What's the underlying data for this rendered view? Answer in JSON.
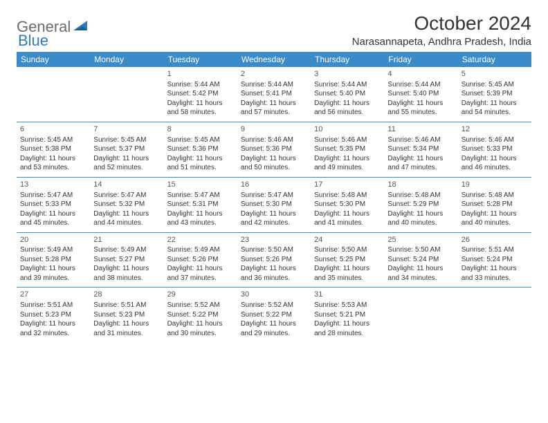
{
  "brand": {
    "part1": "General",
    "part2": "Blue"
  },
  "title": "October 2024",
  "location": "Narasannapeta, Andhra Pradesh, India",
  "colors": {
    "header_bg": "#3b8bc9",
    "header_fg": "#ffffff",
    "rule": "#3b8bc9",
    "text": "#333333",
    "logo_gray": "#6b6b6b",
    "logo_blue": "#2f7bbf"
  },
  "weekdays": [
    "Sunday",
    "Monday",
    "Tuesday",
    "Wednesday",
    "Thursday",
    "Friday",
    "Saturday"
  ],
  "lead_blanks": 2,
  "days": [
    {
      "n": "1",
      "sunrise": "5:44 AM",
      "sunset": "5:42 PM",
      "daylight": "11 hours and 58 minutes."
    },
    {
      "n": "2",
      "sunrise": "5:44 AM",
      "sunset": "5:41 PM",
      "daylight": "11 hours and 57 minutes."
    },
    {
      "n": "3",
      "sunrise": "5:44 AM",
      "sunset": "5:40 PM",
      "daylight": "11 hours and 56 minutes."
    },
    {
      "n": "4",
      "sunrise": "5:44 AM",
      "sunset": "5:40 PM",
      "daylight": "11 hours and 55 minutes."
    },
    {
      "n": "5",
      "sunrise": "5:45 AM",
      "sunset": "5:39 PM",
      "daylight": "11 hours and 54 minutes."
    },
    {
      "n": "6",
      "sunrise": "5:45 AM",
      "sunset": "5:38 PM",
      "daylight": "11 hours and 53 minutes."
    },
    {
      "n": "7",
      "sunrise": "5:45 AM",
      "sunset": "5:37 PM",
      "daylight": "11 hours and 52 minutes."
    },
    {
      "n": "8",
      "sunrise": "5:45 AM",
      "sunset": "5:36 PM",
      "daylight": "11 hours and 51 minutes."
    },
    {
      "n": "9",
      "sunrise": "5:46 AM",
      "sunset": "5:36 PM",
      "daylight": "11 hours and 50 minutes."
    },
    {
      "n": "10",
      "sunrise": "5:46 AM",
      "sunset": "5:35 PM",
      "daylight": "11 hours and 49 minutes."
    },
    {
      "n": "11",
      "sunrise": "5:46 AM",
      "sunset": "5:34 PM",
      "daylight": "11 hours and 47 minutes."
    },
    {
      "n": "12",
      "sunrise": "5:46 AM",
      "sunset": "5:33 PM",
      "daylight": "11 hours and 46 minutes."
    },
    {
      "n": "13",
      "sunrise": "5:47 AM",
      "sunset": "5:33 PM",
      "daylight": "11 hours and 45 minutes."
    },
    {
      "n": "14",
      "sunrise": "5:47 AM",
      "sunset": "5:32 PM",
      "daylight": "11 hours and 44 minutes."
    },
    {
      "n": "15",
      "sunrise": "5:47 AM",
      "sunset": "5:31 PM",
      "daylight": "11 hours and 43 minutes."
    },
    {
      "n": "16",
      "sunrise": "5:47 AM",
      "sunset": "5:30 PM",
      "daylight": "11 hours and 42 minutes."
    },
    {
      "n": "17",
      "sunrise": "5:48 AM",
      "sunset": "5:30 PM",
      "daylight": "11 hours and 41 minutes."
    },
    {
      "n": "18",
      "sunrise": "5:48 AM",
      "sunset": "5:29 PM",
      "daylight": "11 hours and 40 minutes."
    },
    {
      "n": "19",
      "sunrise": "5:48 AM",
      "sunset": "5:28 PM",
      "daylight": "11 hours and 40 minutes."
    },
    {
      "n": "20",
      "sunrise": "5:49 AM",
      "sunset": "5:28 PM",
      "daylight": "11 hours and 39 minutes."
    },
    {
      "n": "21",
      "sunrise": "5:49 AM",
      "sunset": "5:27 PM",
      "daylight": "11 hours and 38 minutes."
    },
    {
      "n": "22",
      "sunrise": "5:49 AM",
      "sunset": "5:26 PM",
      "daylight": "11 hours and 37 minutes."
    },
    {
      "n": "23",
      "sunrise": "5:50 AM",
      "sunset": "5:26 PM",
      "daylight": "11 hours and 36 minutes."
    },
    {
      "n": "24",
      "sunrise": "5:50 AM",
      "sunset": "5:25 PM",
      "daylight": "11 hours and 35 minutes."
    },
    {
      "n": "25",
      "sunrise": "5:50 AM",
      "sunset": "5:24 PM",
      "daylight": "11 hours and 34 minutes."
    },
    {
      "n": "26",
      "sunrise": "5:51 AM",
      "sunset": "5:24 PM",
      "daylight": "11 hours and 33 minutes."
    },
    {
      "n": "27",
      "sunrise": "5:51 AM",
      "sunset": "5:23 PM",
      "daylight": "11 hours and 32 minutes."
    },
    {
      "n": "28",
      "sunrise": "5:51 AM",
      "sunset": "5:23 PM",
      "daylight": "11 hours and 31 minutes."
    },
    {
      "n": "29",
      "sunrise": "5:52 AM",
      "sunset": "5:22 PM",
      "daylight": "11 hours and 30 minutes."
    },
    {
      "n": "30",
      "sunrise": "5:52 AM",
      "sunset": "5:22 PM",
      "daylight": "11 hours and 29 minutes."
    },
    {
      "n": "31",
      "sunrise": "5:53 AM",
      "sunset": "5:21 PM",
      "daylight": "11 hours and 28 minutes."
    }
  ],
  "labels": {
    "sunrise": "Sunrise:",
    "sunset": "Sunset:",
    "daylight": "Daylight:"
  }
}
